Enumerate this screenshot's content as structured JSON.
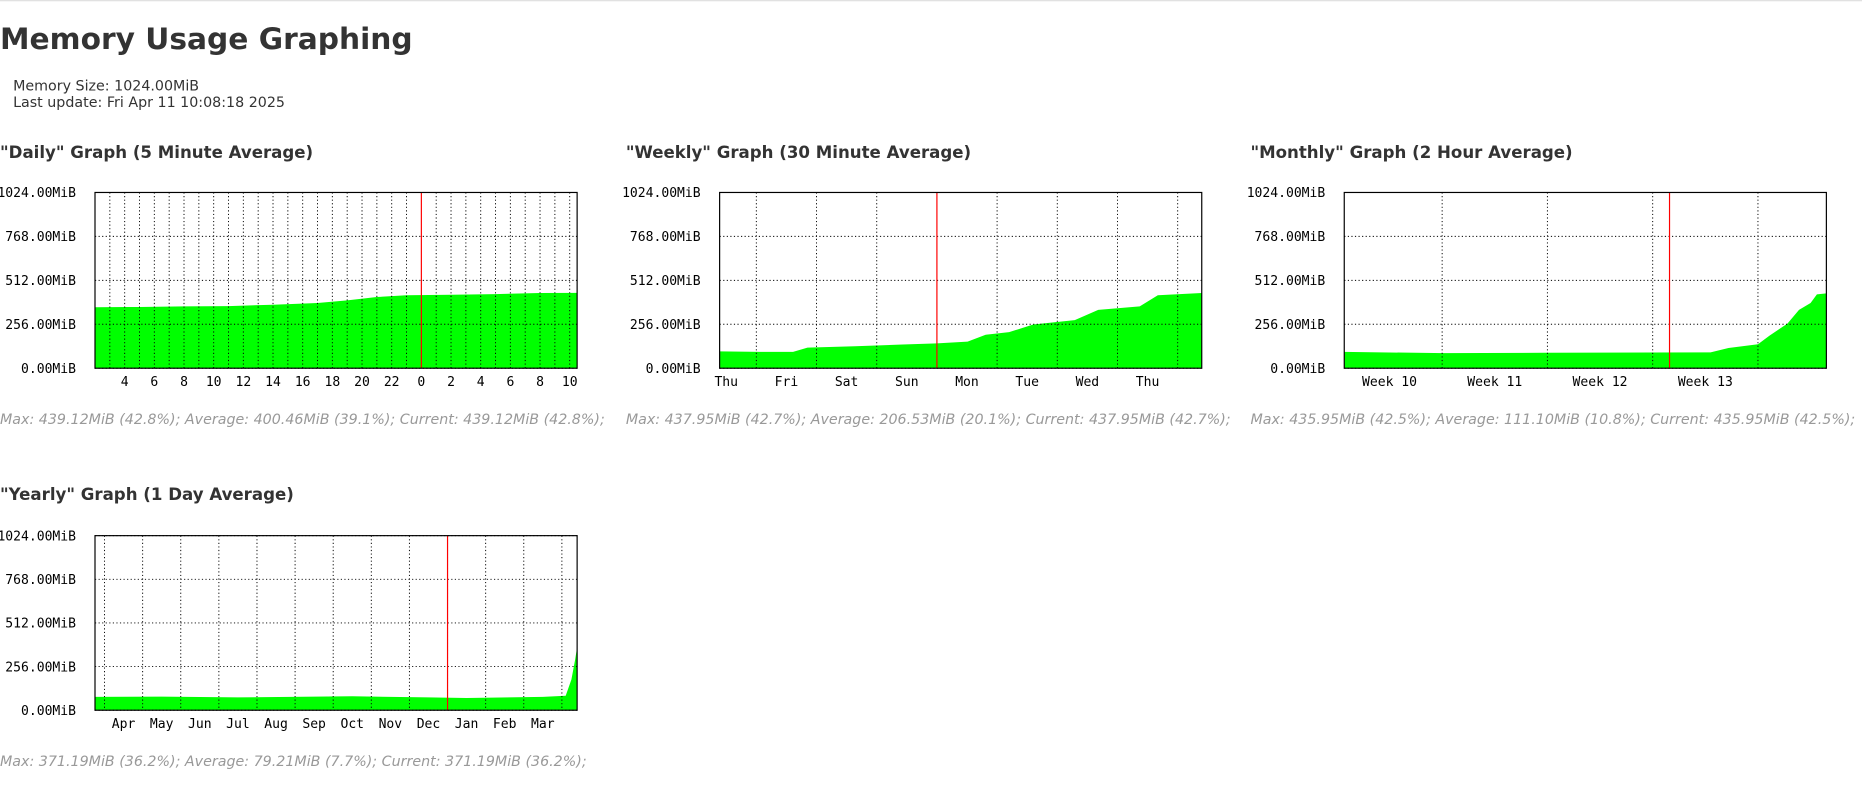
{
  "header": {
    "title": "Memory Usage Graphing",
    "memory_size": "Memory Size: 1024.00MiB",
    "last_update": "Last update: Fri Apr 11 10:08:18 2025"
  },
  "chart_data": [
    {
      "type": "area",
      "title": "\"Daily\" Graph (5 Minute Average)",
      "color": "#00ff00",
      "now_line": 0,
      "now_color": "#ff0000",
      "x": [
        -22,
        -19,
        -16,
        -13,
        -10,
        -7,
        -5,
        -3,
        -1,
        2,
        5,
        8,
        10.5
      ],
      "values": [
        355,
        357,
        360,
        362,
        370,
        380,
        395,
        415,
        425,
        428,
        432,
        438,
        439
      ],
      "xlim": [
        -22,
        10.5
      ],
      "ylim": [
        0,
        1024
      ],
      "xticks": [
        {
          "value": -20,
          "label": "4"
        },
        {
          "value": -18,
          "label": "6"
        },
        {
          "value": -16,
          "label": "8"
        },
        {
          "value": -14,
          "label": "10"
        },
        {
          "value": -12,
          "label": "12"
        },
        {
          "value": -10,
          "label": "14"
        },
        {
          "value": -8,
          "label": "16"
        },
        {
          "value": -6,
          "label": "18"
        },
        {
          "value": -4,
          "label": "20"
        },
        {
          "value": -2,
          "label": "22"
        },
        0,
        2,
        4,
        6,
        8,
        10
      ],
      "xgrid": [
        -21,
        -20,
        -19,
        -18,
        -17,
        -16,
        -15,
        -14,
        -13,
        -12,
        -11,
        -10,
        -9,
        -8,
        -7,
        -6,
        -5,
        -4,
        -3,
        -2,
        -1,
        1,
        2,
        3,
        4,
        5,
        6,
        7,
        8,
        9,
        10
      ],
      "yticks": [
        {
          "value": 0,
          "label": "0.00MiB"
        },
        {
          "value": 256,
          "label": "256.00MiB"
        },
        {
          "value": 512,
          "label": "512.00MiB"
        },
        {
          "value": 768,
          "label": "768.00MiB"
        },
        {
          "value": 1024,
          "label": "1024.00MiB"
        }
      ],
      "summary": "Max: 439.12MiB (42.8%); Average: 400.46MiB (39.1%); Current: 439.12MiB (42.8%);"
    },
    {
      "type": "area",
      "title": "\"Weekly\" Graph (30 Minute Average)",
      "color": "#00ff00",
      "now_line": 0,
      "now_color": "#ff0000",
      "x": [
        -3.61,
        -2.94,
        -2.39,
        -2.15,
        -1.36,
        -0.57,
        0,
        0.51,
        0.81,
        1.2,
        1.6,
        2.29,
        2.68,
        3.37,
        3.67,
        4.4
      ],
      "values": [
        98,
        95,
        95,
        120,
        128,
        138,
        145,
        155,
        195,
        210,
        255,
        280,
        340,
        360,
        425,
        438
      ],
      "xlim": [
        -3.61,
        4.4
      ],
      "ylim": [
        0,
        1024
      ],
      "xticks": [
        {
          "value": -3.5,
          "label": "Thu"
        },
        {
          "value": -2.5,
          "label": "Fri"
        },
        {
          "value": -1.5,
          "label": "Sat"
        },
        {
          "value": -0.5,
          "label": "Sun"
        },
        {
          "value": 0.5,
          "label": "Mon"
        },
        {
          "value": 1.5,
          "label": "Tue"
        },
        {
          "value": 2.5,
          "label": "Wed"
        },
        {
          "value": 3.5,
          "label": "Thu"
        }
      ],
      "xgrid": [
        -3,
        -2,
        -1,
        1,
        2,
        3,
        4
      ],
      "yticks": [
        {
          "value": 0,
          "label": "0.00MiB"
        },
        {
          "value": 256,
          "label": "256.00MiB"
        },
        {
          "value": 512,
          "label": "512.00MiB"
        },
        {
          "value": 768,
          "label": "768.00MiB"
        },
        {
          "value": 1024,
          "label": "1024.00MiB"
        }
      ],
      "summary": "Max: 437.95MiB (42.7%); Average: 206.53MiB (20.1%); Current: 437.95MiB (42.7%);"
    },
    {
      "type": "area",
      "title": "\"Monthly\" Graph (2 Hour Average)",
      "color": "#00ff00",
      "now_line": 12.66,
      "now_color": "#ff0000",
      "x": [
        9.57,
        10.51,
        11.47,
        13.05,
        13.22,
        13.5,
        13.61,
        13.78,
        13.89,
        14.0,
        14.06,
        14.15
      ],
      "values": [
        95,
        88,
        90,
        92,
        118,
        140,
        190,
        260,
        340,
        380,
        430,
        436
      ],
      "xlim": [
        9.57,
        14.15
      ],
      "ylim": [
        0,
        1024
      ],
      "xticks": [
        {
          "value": 10,
          "label": "Week 10"
        },
        {
          "value": 11,
          "label": "Week 11"
        },
        {
          "value": 12,
          "label": "Week 12"
        },
        {
          "value": 13,
          "label": "Week 13"
        }
      ],
      "xgrid": [
        10.5,
        11.5,
        12.5,
        13.5
      ],
      "yticks": [
        {
          "value": 0,
          "label": "0.00MiB"
        },
        {
          "value": 256,
          "label": "256.00MiB"
        },
        {
          "value": 512,
          "label": "512.00MiB"
        },
        {
          "value": 768,
          "label": "768.00MiB"
        },
        {
          "value": 1024,
          "label": "1024.00MiB"
        }
      ],
      "summary": "Max: 435.95MiB (42.5%); Average: 111.10MiB (10.8%); Current: 435.95MiB (42.5%);"
    },
    {
      "type": "area",
      "title": "\"Yearly\" Graph (1 Day Average)",
      "color": "#00ff00",
      "now_line": 8.5,
      "now_color": "#ff0000",
      "x": [
        -0.75,
        1,
        3,
        6,
        8,
        9,
        11,
        11.6,
        11.75,
        11.85,
        11.9
      ],
      "values": [
        78,
        80,
        75,
        82,
        75,
        72,
        78,
        85,
        180,
        300,
        371
      ],
      "xlim": [
        -0.75,
        11.9
      ],
      "ylim": [
        0,
        1024
      ],
      "xticks": [
        {
          "value": 0,
          "label": "Apr"
        },
        {
          "value": 1,
          "label": "May"
        },
        {
          "value": 2,
          "label": "Jun"
        },
        {
          "value": 3,
          "label": "Jul"
        },
        {
          "value": 4,
          "label": "Aug"
        },
        {
          "value": 5,
          "label": "Sep"
        },
        {
          "value": 6,
          "label": "Oct"
        },
        {
          "value": 7,
          "label": "Nov"
        },
        {
          "value": 8,
          "label": "Dec"
        },
        {
          "value": 9,
          "label": "Jan"
        },
        {
          "value": 10,
          "label": "Feb"
        },
        {
          "value": 11,
          "label": "Mar"
        }
      ],
      "xgrid": [
        -0.5,
        0.5,
        1.5,
        2.5,
        3.5,
        4.5,
        5.5,
        6.5,
        7.5,
        8.5,
        9.5,
        10.5,
        11.5
      ],
      "yticks": [
        {
          "value": 0,
          "label": "0.00MiB"
        },
        {
          "value": 256,
          "label": "256.00MiB"
        },
        {
          "value": 512,
          "label": "512.00MiB"
        },
        {
          "value": 768,
          "label": "768.00MiB"
        },
        {
          "value": 1024,
          "label": "1024.00MiB"
        }
      ],
      "summary": "Max: 371.19MiB (36.2%); Average: 79.21MiB (7.7%); Current: 371.19MiB (36.2%);"
    }
  ]
}
